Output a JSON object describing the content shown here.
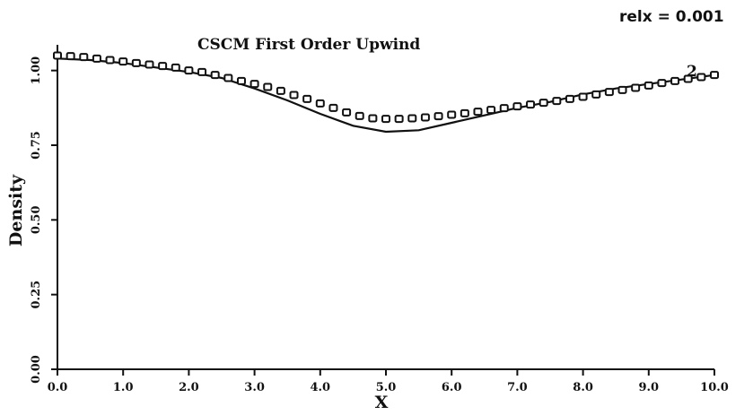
{
  "chart_data": {
    "type": "line",
    "title": "CSCM First Order Upwind",
    "annotation": "relx = 0.001",
    "curve_label": "2",
    "xlabel": "X",
    "ylabel": "Density",
    "xlim": [
      0,
      10
    ],
    "ylim": [
      0,
      1.05
    ],
    "x_ticks": [
      "0.0",
      "1.0",
      "2.0",
      "3.0",
      "4.0",
      "5.0",
      "6.0",
      "7.0",
      "8.0",
      "9.0",
      "10.0"
    ],
    "y_ticks": [
      "0.00",
      "0.25",
      "0.50",
      "0.75",
      "1.00"
    ],
    "grid": false,
    "legend": "none",
    "series": [
      {
        "style": "solid-line",
        "color": "#111111",
        "x": [
          0.0,
          0.5,
          1.0,
          1.5,
          2.0,
          2.5,
          3.0,
          3.5,
          4.0,
          4.5,
          5.0,
          5.5,
          6.0,
          6.5,
          7.0,
          7.5,
          8.0,
          8.5,
          9.0,
          9.5,
          10.0
        ],
        "y": [
          1.04,
          1.035,
          1.025,
          1.01,
          0.995,
          0.975,
          0.94,
          0.9,
          0.855,
          0.815,
          0.795,
          0.8,
          0.825,
          0.85,
          0.875,
          0.895,
          0.92,
          0.94,
          0.955,
          0.97,
          0.985
        ]
      },
      {
        "style": "square-markers",
        "color": "#111111",
        "x": [
          0.0,
          0.2,
          0.4,
          0.6,
          0.8,
          1.0,
          1.2,
          1.4,
          1.6,
          1.8,
          2.0,
          2.2,
          2.4,
          2.6,
          2.8,
          3.0,
          3.2,
          3.4,
          3.6,
          3.8,
          4.0,
          4.2,
          4.4,
          4.6,
          4.8,
          5.0,
          5.2,
          5.4,
          5.6,
          5.8,
          6.0,
          6.2,
          6.4,
          6.6,
          6.8,
          7.0,
          7.2,
          7.4,
          7.6,
          7.8,
          8.0,
          8.2,
          8.4,
          8.6,
          8.8,
          9.0,
          9.2,
          9.4,
          9.6,
          9.8,
          10.0
        ],
        "y": [
          1.05,
          1.048,
          1.045,
          1.04,
          1.035,
          1.03,
          1.025,
          1.02,
          1.015,
          1.01,
          1.0,
          0.995,
          0.985,
          0.975,
          0.965,
          0.955,
          0.945,
          0.932,
          0.918,
          0.905,
          0.89,
          0.875,
          0.86,
          0.848,
          0.84,
          0.838,
          0.838,
          0.84,
          0.843,
          0.847,
          0.852,
          0.857,
          0.862,
          0.868,
          0.874,
          0.88,
          0.886,
          0.892,
          0.898,
          0.905,
          0.912,
          0.92,
          0.928,
          0.935,
          0.942,
          0.95,
          0.958,
          0.965,
          0.972,
          0.978,
          0.985
        ]
      }
    ]
  }
}
